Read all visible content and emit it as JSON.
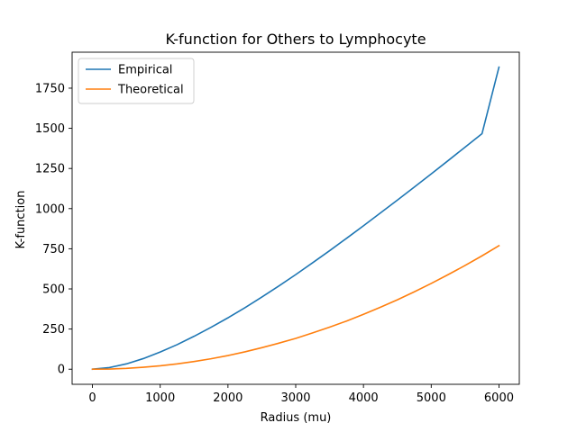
{
  "chart_data": {
    "type": "line",
    "title": "K-function for Others to Lymphocyte",
    "xlabel": "Radius (mu)",
    "ylabel": "K-function",
    "xlim": [
      -300,
      6300
    ],
    "ylim": [
      -94,
      1974
    ],
    "xticks": [
      0,
      1000,
      2000,
      3000,
      4000,
      5000,
      6000
    ],
    "xtick_labels": [
      "0",
      "1000",
      "2000",
      "3000",
      "4000",
      "5000",
      "6000"
    ],
    "yticks": [
      0,
      250,
      500,
      750,
      1000,
      1250,
      1500,
      1750
    ],
    "ytick_labels": [
      "0",
      "250",
      "500",
      "750",
      "1000",
      "1250",
      "1500",
      "1750"
    ],
    "grid": false,
    "legend_position": "top-left",
    "series": [
      {
        "name": "Empirical",
        "color": "#1f77b4",
        "x": [
          0,
          250,
          500,
          750,
          1000,
          1250,
          1500,
          1750,
          2000,
          2250,
          2500,
          2750,
          3000,
          3250,
          3500,
          3750,
          4000,
          4250,
          4500,
          4750,
          5000,
          5250,
          5500,
          5750,
          6000
        ],
        "y": [
          0,
          10,
          33,
          66,
          107,
          153,
          205,
          261,
          320,
          383,
          449,
          518,
          589,
          663,
          738,
          815,
          893,
          973,
          1053,
          1134,
          1216,
          1299,
          1383,
          1467,
          1881
        ]
      },
      {
        "name": "Theoretical",
        "color": "#ff7f0e",
        "x": [
          0,
          250,
          500,
          750,
          1000,
          1250,
          1500,
          1750,
          2000,
          2250,
          2500,
          2750,
          3000,
          3250,
          3500,
          3750,
          4000,
          4250,
          4500,
          4750,
          5000,
          5250,
          5500,
          5750,
          6000
        ],
        "y": [
          0,
          1,
          5,
          12,
          21,
          33,
          48,
          65,
          85,
          108,
          134,
          162,
          192,
          226,
          262,
          300,
          342,
          386,
          432,
          482,
          534,
          589,
          646,
          706,
          769
        ]
      }
    ]
  }
}
